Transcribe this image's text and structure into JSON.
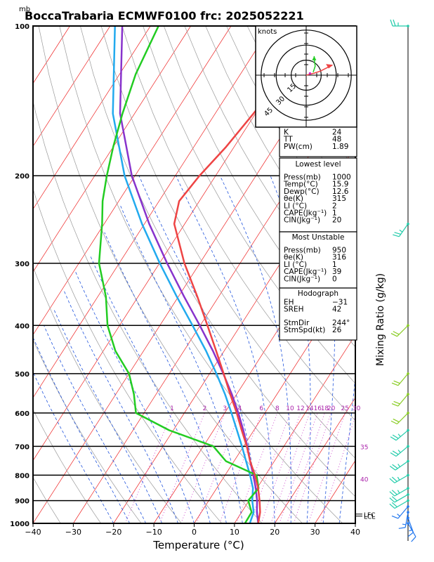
{
  "header": {
    "title": "BoccaTrabaria ECMWF0100 frc: 2025052221",
    "pressure_unit": "mb"
  },
  "axes": {
    "xlabel": "Temperature (°C)",
    "right_label": "Mixing Ratio (g/kg)",
    "x_ticks": [
      "−40",
      "−30",
      "−20",
      "−10",
      "0",
      "10",
      "20",
      "30",
      "40"
    ],
    "p_ticks": [
      "100",
      "200",
      "300",
      "400",
      "500",
      "600",
      "700",
      "800",
      "900",
      "1000"
    ],
    "mixing_ratio_labels": [
      "1",
      "2",
      "3",
      "4",
      "6",
      "8",
      "10",
      "12",
      "14",
      "16",
      "18",
      "20",
      "25",
      "30"
    ],
    "theta_e_labels": [
      "30",
      "35",
      "40"
    ],
    "level_markers": [
      "LFC",
      "LCL"
    ]
  },
  "hodograph": {
    "unit_label": "knots",
    "ring_labels": [
      "15",
      "30",
      "45"
    ]
  },
  "indices": {
    "top": [
      {
        "label": "K",
        "value": "24"
      },
      {
        "label": "TT",
        "value": "48"
      },
      {
        "label": "PW(cm)",
        "value": "1.89"
      }
    ],
    "lowest_level": {
      "title": "Lowest level",
      "rows": [
        {
          "label": "Press(mb)",
          "value": "1000"
        },
        {
          "label": "Temp(°C)",
          "value": "15.9"
        },
        {
          "label": "Dewp(°C)",
          "value": "12.6"
        },
        {
          "label": "θe(K)",
          "value": "315"
        },
        {
          "label": "LI (°C)",
          "value": "2"
        },
        {
          "label": "CAPE(Jkg⁻¹)",
          "value": "1"
        },
        {
          "label": "CIN(Jkg⁻¹)",
          "value": "20"
        }
      ]
    },
    "most_unstable": {
      "title": "Most Unstable",
      "rows": [
        {
          "label": "Press(mb)",
          "value": "950"
        },
        {
          "label": "θe(K)",
          "value": "316"
        },
        {
          "label": "LI (°C)",
          "value": "1"
        },
        {
          "label": "CAPE(Jkg⁻¹)",
          "value": "39"
        },
        {
          "label": "CIN(Jkg⁻¹)",
          "value": "0"
        }
      ]
    },
    "hodograph_box": {
      "title": "Hodograph",
      "rows": [
        {
          "label": "EH",
          "value": "−31"
        },
        {
          "label": "SREH",
          "value": "42"
        },
        {
          "label": "StmDir",
          "value": "244°"
        },
        {
          "label": "StmSpd(kt)",
          "value": "26"
        }
      ]
    }
  },
  "colors": {
    "temperature": "#ee4444",
    "dewpoint": "#22cc22",
    "parcel": "#8833cc",
    "wetbulb": "#22aaee",
    "isotherm": "#ee2222",
    "dry_adiabat": "#999999",
    "moist_adiabat": "#2255dd",
    "mixing_ratio": "#cc44cc"
  },
  "chart_data": {
    "type": "line",
    "xlim": [
      -40,
      40
    ],
    "ylim": [
      1000,
      100
    ],
    "y_scale": "log",
    "grid": true,
    "series": [
      {
        "key": "temperature",
        "pressure": [
          1000,
          950,
          900,
          850,
          800,
          750,
          700,
          650,
          600,
          550,
          500,
          450,
          400,
          350,
          300,
          250,
          225,
          200,
          175,
          150,
          125,
          100
        ],
        "values": [
          15.9,
          14.6,
          12.6,
          10.3,
          7.4,
          4.0,
          0.8,
          -3.0,
          -7.0,
          -11.6,
          -16.5,
          -22.0,
          -28.2,
          -35.3,
          -43.8,
          -52.6,
          -55.0,
          -54.0,
          -52.0,
          -50.5,
          -49.0,
          -48.0
        ]
      },
      {
        "key": "dewpoint",
        "pressure": [
          1000,
          950,
          900,
          850,
          800,
          750,
          700,
          650,
          600,
          550,
          500,
          450,
          400,
          350,
          300,
          250,
          225,
          200,
          175,
          150,
          125,
          100
        ],
        "values": [
          12.6,
          12.5,
          9.8,
          10.4,
          7.8,
          -2.0,
          -7.5,
          -21.0,
          -32.0,
          -35.5,
          -40.0,
          -47.0,
          -53.0,
          -58.0,
          -65.0,
          -70.5,
          -74.0,
          -77.0,
          -80.0,
          -83.0,
          -86.0,
          -88.0
        ]
      },
      {
        "key": "parcel",
        "pressure": [
          1000,
          950,
          900,
          850,
          800,
          750,
          700,
          650,
          600,
          550,
          500,
          450,
          400,
          350,
          300,
          250,
          200,
          150,
          100
        ],
        "values": [
          15.9,
          13.8,
          12.0,
          9.7,
          7.0,
          4.0,
          0.9,
          -2.6,
          -6.6,
          -11.2,
          -16.6,
          -22.8,
          -30.1,
          -38.6,
          -48.1,
          -58.8,
          -70.8,
          -83.6,
          -97.0
        ]
      },
      {
        "key": "wetbulb",
        "pressure": [
          1000,
          950,
          900,
          850,
          800,
          750,
          700,
          650,
          600,
          550,
          500,
          450,
          400,
          350,
          300,
          250,
          200,
          150,
          100
        ],
        "values": [
          13.8,
          13.0,
          10.8,
          9.0,
          6.2,
          3.0,
          -0.4,
          -4.2,
          -8.3,
          -12.9,
          -18.3,
          -24.5,
          -31.9,
          -40.4,
          -49.9,
          -60.6,
          -72.6,
          -85.4,
          -98.8
        ]
      }
    ],
    "hodograph": {
      "max_speed_kt": 45,
      "storm_dir_deg": 244,
      "storm_speed_kt": 26,
      "wind_profile": [
        [
          0,
          0
        ],
        [
          8,
          2
        ],
        [
          14,
          4
        ],
        [
          18,
          6
        ],
        [
          22,
          8
        ],
        [
          26,
          10
        ]
      ],
      "green_profile": [
        [
          7,
          3
        ],
        [
          9,
          9
        ],
        [
          8,
          16
        ],
        [
          8,
          19
        ]
      ]
    },
    "wind_barbs": [
      {
        "p": 1000,
        "dir": 150,
        "kt": 10
      },
      {
        "p": 975,
        "dir": 160,
        "kt": 15
      },
      {
        "p": 950,
        "dir": 190,
        "kt": 15
      },
      {
        "p": 925,
        "dir": 220,
        "kt": 15
      },
      {
        "p": 900,
        "dir": 240,
        "kt": 20
      },
      {
        "p": 875,
        "dir": 240,
        "kt": 20
      },
      {
        "p": 850,
        "dir": 240,
        "kt": 25
      },
      {
        "p": 800,
        "dir": 240,
        "kt": 25
      },
      {
        "p": 750,
        "dir": 235,
        "kt": 25
      },
      {
        "p": 700,
        "dir": 230,
        "kt": 25
      },
      {
        "p": 650,
        "dir": 230,
        "kt": 25
      },
      {
        "p": 600,
        "dir": 225,
        "kt": 20
      },
      {
        "p": 550,
        "dir": 220,
        "kt": 20
      },
      {
        "p": 500,
        "dir": 220,
        "kt": 20
      },
      {
        "p": 400,
        "dir": 225,
        "kt": 20
      },
      {
        "p": 250,
        "dir": 215,
        "kt": 25
      },
      {
        "p": 100,
        "dir": 270,
        "kt": 25
      }
    ]
  }
}
